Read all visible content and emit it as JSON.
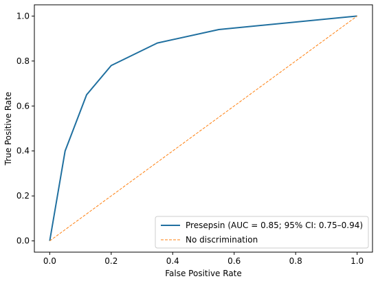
{
  "chart_data": {
    "type": "line",
    "xlabel": "False Positive Rate",
    "ylabel": "True Positive Rate",
    "xlim": [
      -0.05,
      1.05
    ],
    "ylim": [
      -0.05,
      1.05
    ],
    "xticks": [
      "0.0",
      "0.2",
      "0.4",
      "0.6",
      "0.8",
      "1.0"
    ],
    "yticks": [
      "0.0",
      "0.2",
      "0.4",
      "0.6",
      "0.8",
      "1.0"
    ],
    "legend_position": "lower-right",
    "grid": false,
    "series": [
      {
        "name": "Presepsin (AUC = 0.85; 95% CI: 0.75–0.94)",
        "style": "solid",
        "color": "#1f6f9f",
        "x": [
          0.0,
          0.05,
          0.12,
          0.2,
          0.35,
          0.55,
          1.0
        ],
        "y": [
          0.0,
          0.4,
          0.65,
          0.78,
          0.88,
          0.94,
          1.0
        ]
      },
      {
        "name": "No discrimination",
        "style": "dashed",
        "color": "#ff7f0e",
        "x": [
          0.0,
          1.0
        ],
        "y": [
          0.0,
          1.0
        ]
      }
    ]
  }
}
